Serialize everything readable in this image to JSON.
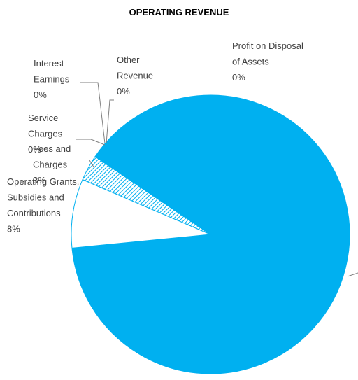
{
  "chart_data": {
    "type": "pie",
    "title": "OPERATING REVENUE",
    "categories": [
      null,
      "Operating Grants, Subsidies and Contributions",
      "Fees and Charges",
      "Service Charges",
      "Interest Earnings",
      "Other Revenue",
      "Profit on Disposal of Assets"
    ],
    "values": [
      89,
      8,
      3,
      0,
      0,
      0,
      0
    ],
    "value_labels": [
      null,
      "8%",
      "3%",
      "0%",
      "0%",
      "0%",
      "0%"
    ],
    "colors": [
      "#00b0f0",
      "#ffffff",
      "hatch",
      "#00b0f0",
      "#00b0f0",
      "#00b0f0",
      "#00b0f0"
    ]
  }
}
